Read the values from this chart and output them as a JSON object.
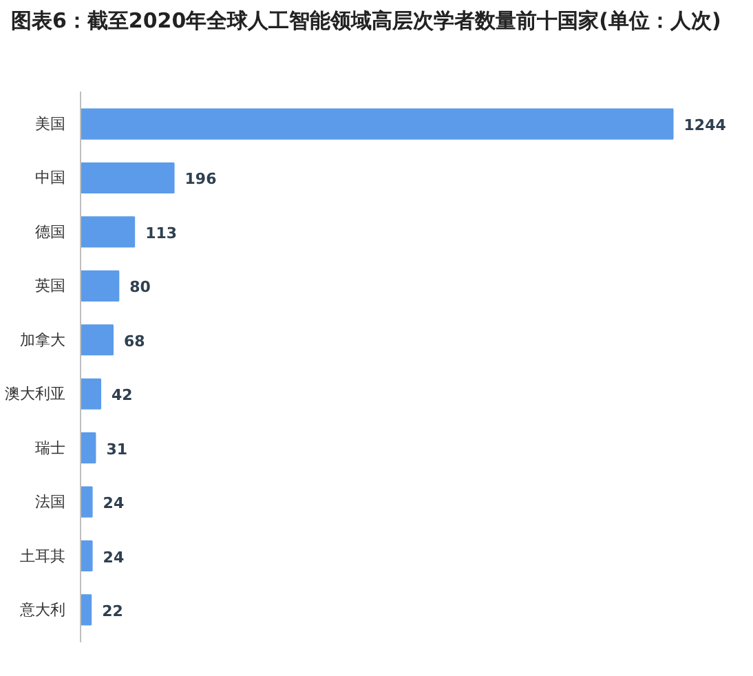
{
  "chart_data": {
    "type": "bar",
    "orientation": "horizontal",
    "title": "图表6：截至2020年全球人工智能领域高层次学者数量前十国家(单位：人次)",
    "categories": [
      "美国",
      "中国",
      "德国",
      "英国",
      "加拿大",
      "澳大利亚",
      "瑞士",
      "法国",
      "土耳其",
      "意大利"
    ],
    "values": [
      1244,
      196,
      113,
      80,
      68,
      42,
      31,
      24,
      24,
      22
    ],
    "color": "#5b9bea",
    "data_labels": true
  }
}
